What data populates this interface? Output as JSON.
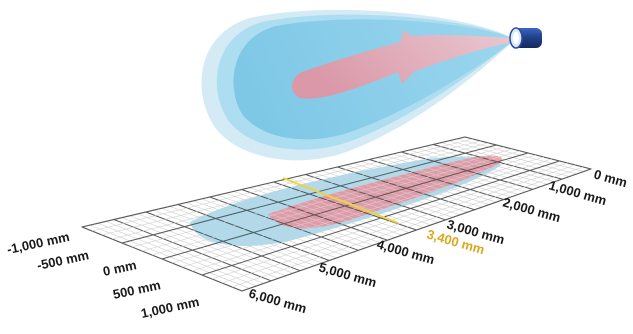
{
  "colors": {
    "beam_outer": "#b8dff0",
    "beam_mid": "#8fd0ea",
    "beam_core": "#f1b0b8",
    "sensor_body": "#1f3f87",
    "grid_line": "#c8c8c8",
    "grid_major": "#555555",
    "footprint_blue": "#8fd0ea",
    "footprint_red": "#f08a95",
    "highlight_line": "#f0d23c",
    "highlight_label": "#d9a81c"
  },
  "icons": {
    "sensor": "cylindrical-ultrasonic-sensor-icon"
  },
  "lateral_axis": {
    "labels": [
      "-1,000 mm",
      "-500 mm",
      "0 mm",
      "500 mm",
      "1,000 mm"
    ]
  },
  "distance_axis": {
    "labels": [
      "0 mm",
      "1,000 mm",
      "2,000 mm",
      "3,000 mm",
      "4,000 mm",
      "5,000 mm",
      "6,000 mm"
    ]
  },
  "highlight": {
    "label": "3,400 mm"
  }
}
